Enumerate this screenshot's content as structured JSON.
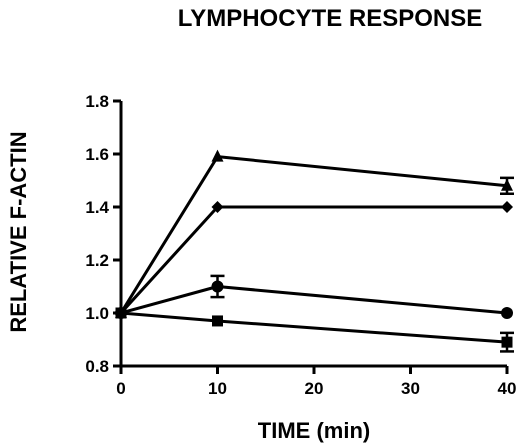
{
  "chart_data": {
    "type": "line",
    "title": "LYMPHOCYTE RESPONSE",
    "xlabel": "TIME (min)",
    "ylabel": "RELATIVE F-ACTIN",
    "xlim": [
      0,
      40
    ],
    "ylim": [
      0.8,
      1.8
    ],
    "x_ticks": [
      "0",
      "10",
      "20",
      "30",
      "40"
    ],
    "y_ticks": [
      "0.8",
      "1.0",
      "1.2",
      "1.4",
      "1.6",
      "1.8"
    ],
    "grid": false,
    "legend": "none",
    "series": [
      {
        "marker": "triangle",
        "points": [
          {
            "x": 0,
            "y": 1.0
          },
          {
            "x": 10,
            "y": 1.59
          },
          {
            "x": 40,
            "y": 1.48,
            "err": 0.03
          }
        ]
      },
      {
        "marker": "diamond",
        "points": [
          {
            "x": 0,
            "y": 1.0
          },
          {
            "x": 10,
            "y": 1.4
          },
          {
            "x": 40,
            "y": 1.4
          }
        ]
      },
      {
        "marker": "circle",
        "points": [
          {
            "x": 0,
            "y": 1.0
          },
          {
            "x": 10,
            "y": 1.1,
            "err": 0.04
          },
          {
            "x": 40,
            "y": 1.0
          }
        ]
      },
      {
        "marker": "square",
        "points": [
          {
            "x": 0,
            "y": 1.0
          },
          {
            "x": 10,
            "y": 0.97
          },
          {
            "x": 40,
            "y": 0.89,
            "err": 0.035
          }
        ]
      }
    ]
  }
}
